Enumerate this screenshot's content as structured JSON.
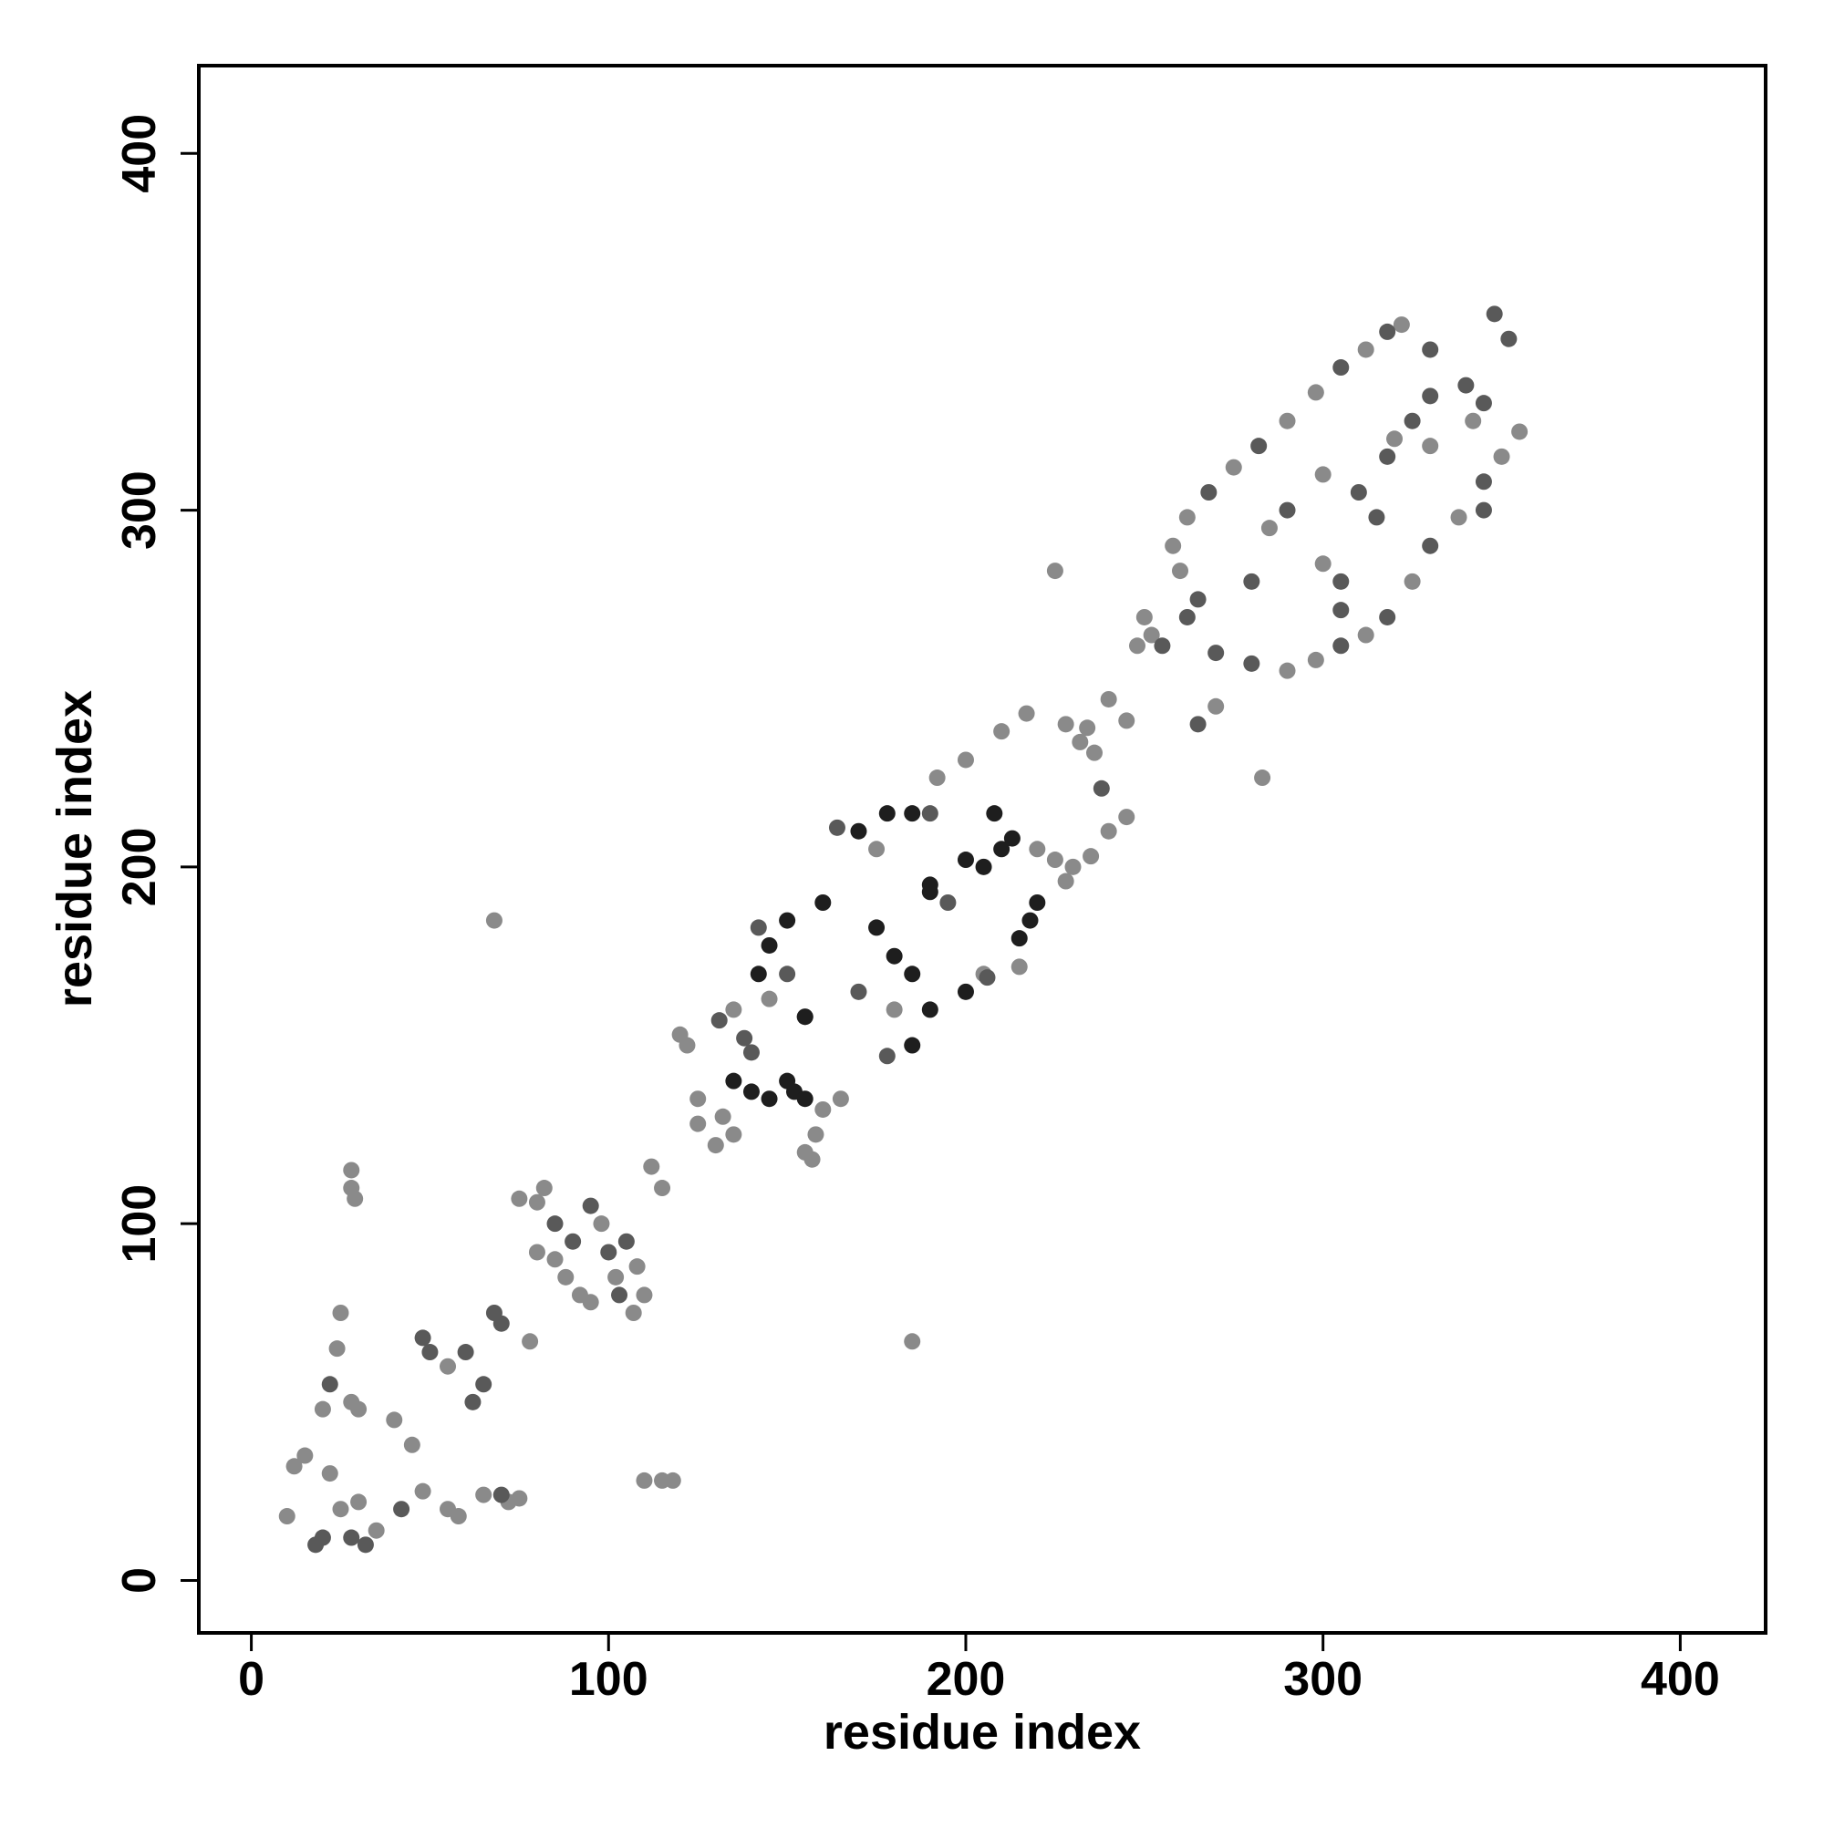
{
  "chart_data": {
    "type": "scatter",
    "xlabel": "residue index",
    "ylabel": "residue index",
    "xlim": [
      -14.7,
      423.9
    ],
    "ylim": [
      -14.7,
      424.6
    ],
    "xticks": [
      0,
      100,
      200,
      300,
      400
    ],
    "yticks": [
      0,
      100,
      200,
      300,
      400
    ],
    "series": [
      {
        "color": "#8a8a8a",
        "x": [
          10,
          12,
          15,
          22,
          25,
          30,
          35,
          24,
          25,
          28,
          30,
          20,
          28,
          28,
          29,
          40,
          45,
          48,
          55,
          58,
          55,
          65,
          72,
          75,
          78,
          75,
          80,
          82,
          80,
          85,
          92,
          88,
          95,
          98,
          102,
          107,
          110,
          108,
          110,
          115,
          118,
          112,
          115,
          120,
          122,
          125,
          125,
          130,
          132,
          135,
          135,
          145,
          155,
          157,
          158,
          68,
          185,
          160,
          165,
          217,
          210,
          200,
          192,
          228,
          234,
          240,
          245,
          220,
          225,
          230,
          235,
          228,
          232,
          236,
          240,
          245,
          248,
          252,
          250,
          225,
          283,
          258,
          262,
          275,
          290,
          298,
          312,
          322,
          290,
          298,
          312,
          325,
          338,
          355,
          260,
          270,
          285,
          300,
          320,
          300,
          330,
          350,
          342,
          180,
          175,
          205,
          215
        ],
        "values": [
          18,
          32,
          35,
          30,
          20,
          22,
          14,
          65,
          75,
          50,
          48,
          48,
          115,
          110,
          107,
          45,
          38,
          25,
          20,
          18,
          60,
          24,
          22,
          23,
          67,
          107,
          106,
          110,
          92,
          90,
          80,
          85,
          78,
          100,
          85,
          75,
          80,
          88,
          28,
          28,
          28,
          116,
          110,
          153,
          150,
          135,
          128,
          122,
          130,
          125,
          160,
          163,
          120,
          118,
          125,
          185,
          67,
          132,
          135,
          243,
          238,
          230,
          225,
          196,
          239,
          210,
          214,
          205,
          202,
          200,
          203,
          240,
          235,
          232,
          247,
          241,
          262,
          265,
          270,
          283,
          225,
          290,
          298,
          312,
          325,
          333,
          345,
          352,
          255,
          258,
          265,
          280,
          298,
          322,
          283,
          245,
          295,
          285,
          320,
          310,
          318,
          315,
          325,
          160,
          205,
          170,
          172
        ]
      },
      {
        "color": "#595959",
        "x": [
          18,
          20,
          28,
          32,
          22,
          50,
          60,
          62,
          65,
          70,
          68,
          70,
          48,
          42,
          85,
          90,
          95,
          100,
          105,
          103,
          138,
          140,
          150,
          142,
          131,
          164,
          178,
          206,
          238,
          155,
          170,
          195,
          190,
          268,
          282,
          305,
          318,
          330,
          270,
          280,
          305,
          318,
          330,
          345,
          345,
          340,
          262,
          265,
          265,
          255,
          290,
          305,
          310,
          315,
          325,
          280,
          318,
          330,
          348,
          352,
          305,
          345
        ],
        "values": [
          10,
          12,
          12,
          10,
          55,
          64,
          64,
          50,
          55,
          24,
          75,
          72,
          68,
          20,
          100,
          95,
          105,
          92,
          95,
          80,
          152,
          148,
          170,
          183,
          157,
          211,
          147,
          169,
          222,
          158,
          165,
          190,
          215,
          305,
          318,
          340,
          350,
          345,
          260,
          257,
          262,
          270,
          290,
          308,
          330,
          335,
          270,
          275,
          240,
          262,
          300,
          280,
          305,
          298,
          325,
          280,
          315,
          332,
          355,
          348,
          272,
          300
        ]
      },
      {
        "color": "#1e1e1e",
        "x": [
          135,
          140,
          145,
          150,
          152,
          155,
          142,
          145,
          150,
          160,
          170,
          178,
          185,
          175,
          180,
          185,
          190,
          200,
          205,
          210,
          213,
          208,
          215,
          218,
          220,
          185,
          190,
          200,
          155,
          190
        ],
        "values": [
          140,
          137,
          135,
          140,
          137,
          135,
          170,
          178,
          185,
          190,
          210,
          215,
          215,
          183,
          175,
          170,
          195,
          202,
          200,
          205,
          208,
          215,
          180,
          185,
          190,
          150,
          160,
          165,
          158,
          193
        ]
      }
    ]
  }
}
